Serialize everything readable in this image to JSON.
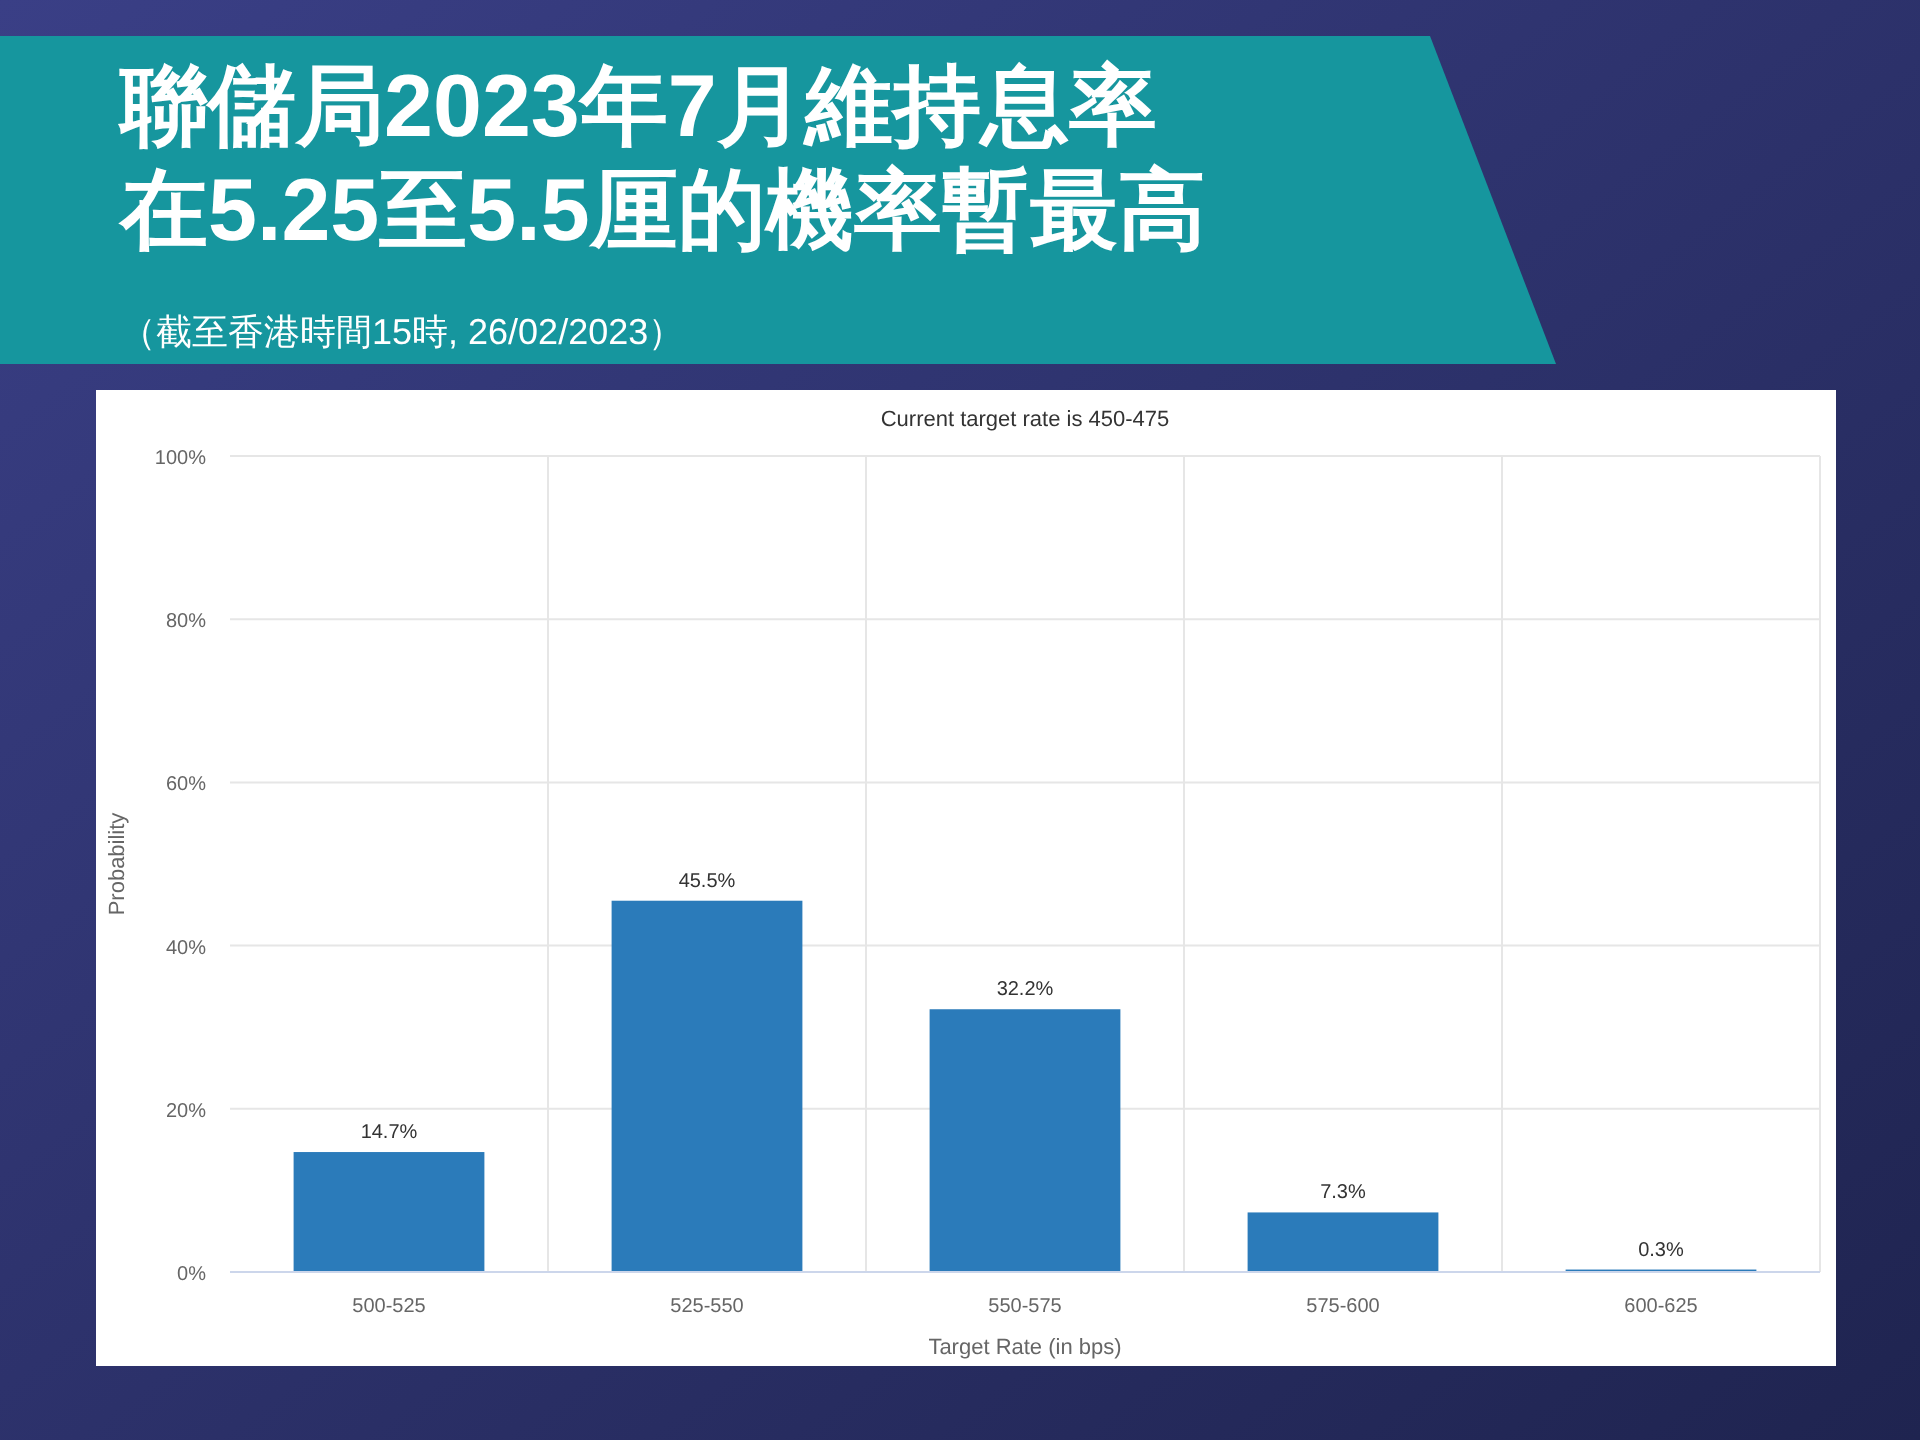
{
  "chart_data": {
    "type": "bar",
    "title": "聯儲局2023年7月維持息率在5.25至5.5厘的機率暫最高",
    "subtitle": "（截至香港時間15時, 26/02/2023）",
    "annotations": [
      "Current target rate is 450-475"
    ],
    "xlabel": "Target Rate (in bps)",
    "ylabel": "Probability",
    "categories": [
      "500-525",
      "525-550",
      "550-575",
      "575-600",
      "600-625"
    ],
    "values": [
      14.7,
      45.5,
      32.2,
      7.3,
      0.3
    ],
    "value_labels": [
      "14.7%",
      "45.5%",
      "32.2%",
      "7.3%",
      "0.3%"
    ],
    "color": "#2b7bba",
    "ylim": [
      0,
      100
    ],
    "yticks": [
      {
        "value": 0,
        "label": "0%"
      },
      {
        "value": 20,
        "label": "20%"
      },
      {
        "value": 40,
        "label": "40%"
      },
      {
        "value": 60,
        "label": "60%"
      },
      {
        "value": 80,
        "label": "80%"
      },
      {
        "value": 100,
        "label": "100%"
      }
    ],
    "grid": true
  }
}
